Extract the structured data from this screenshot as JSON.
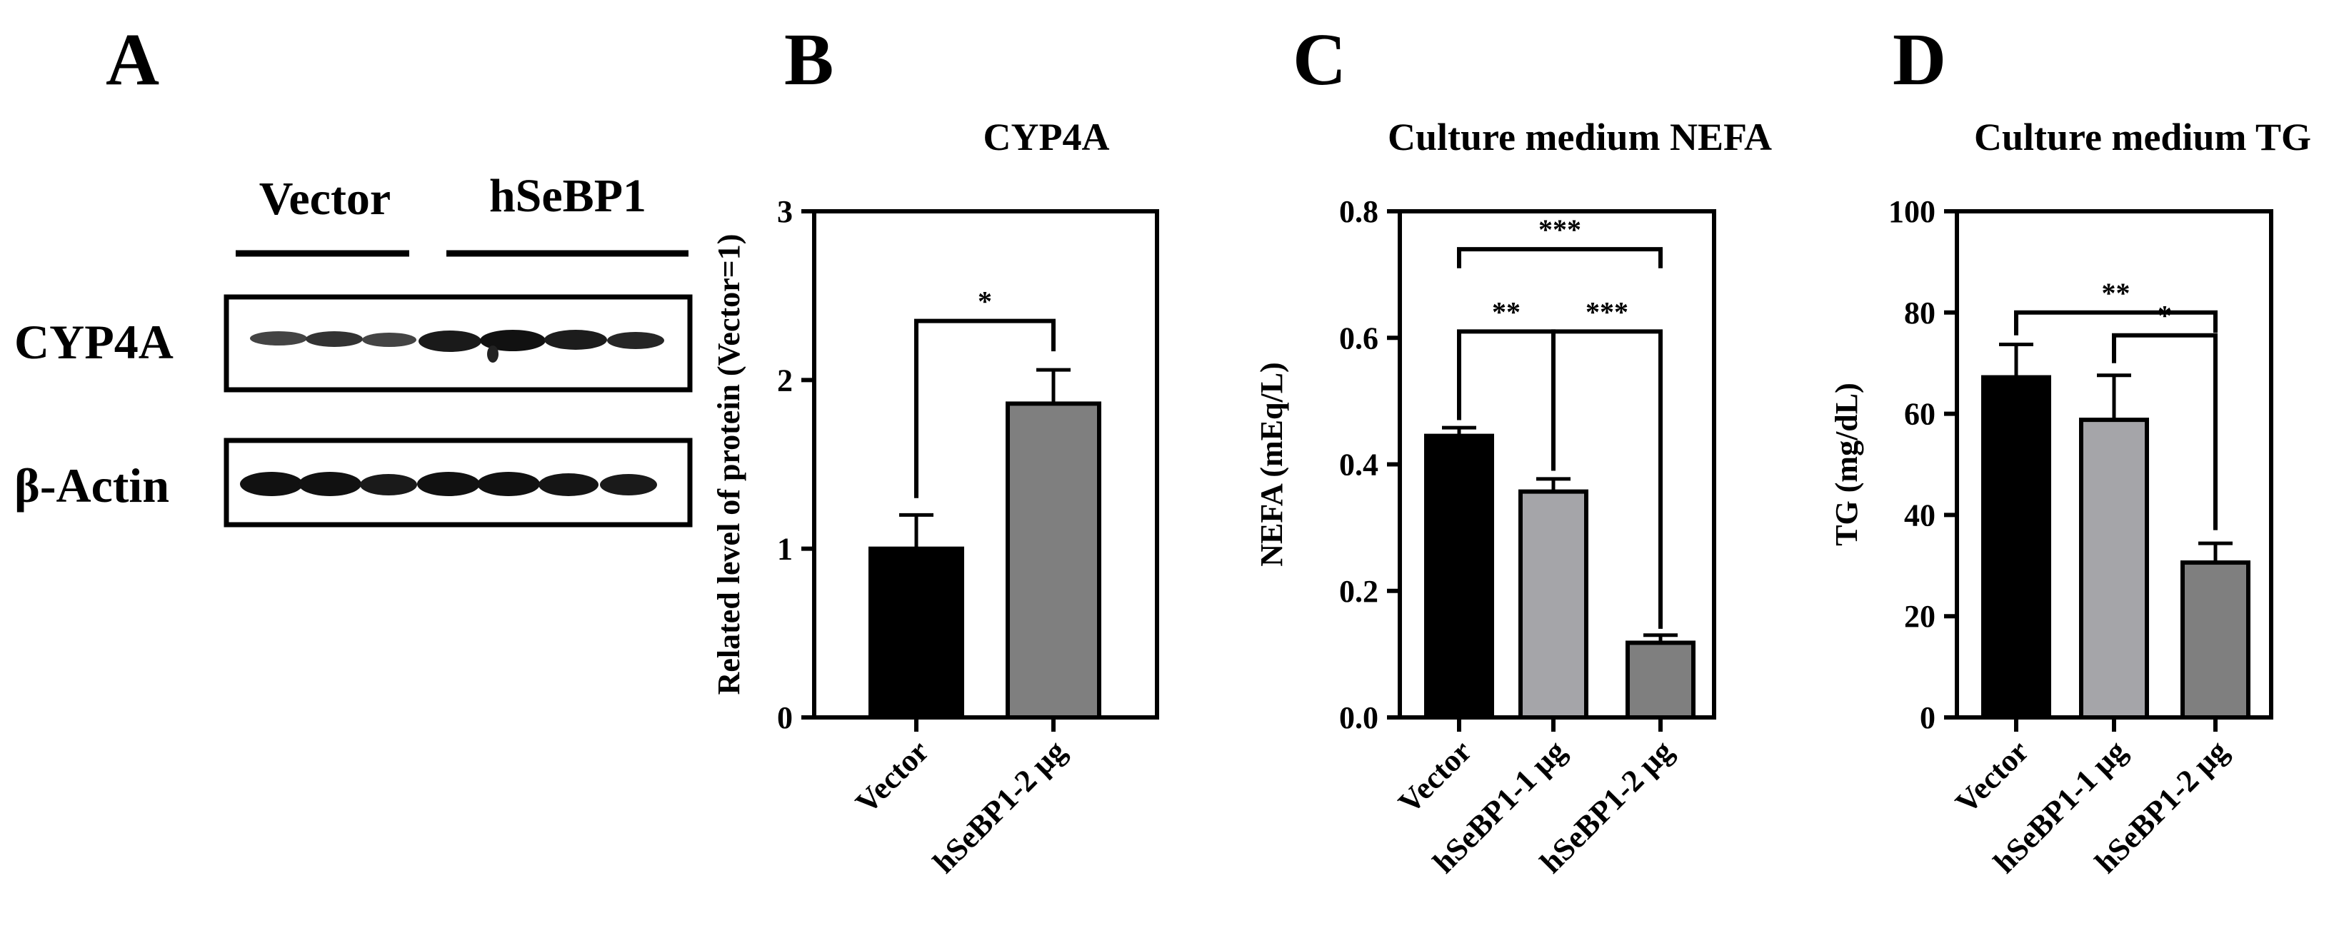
{
  "colors": {
    "ink": "#000000",
    "bar_vector": "#000000",
    "bar_1ug": "#a5a5a9",
    "bar_2ug": "#7f7f7f",
    "background": "#ffffff"
  },
  "panel_a": {
    "letter": "A",
    "group_vector": "Vector",
    "group_hsebp1": "hSeBP1",
    "row_cyp4a": "CYP4A",
    "row_actin": "β-Actin"
  },
  "chart_data": [
    {
      "type": "bar",
      "panel": "B",
      "title": "CYP4A",
      "xlabel": "",
      "ylabel": "Related level of protein (Vector=1)",
      "ylim": [
        0,
        3
      ],
      "yticks": [
        0,
        1,
        2,
        3
      ],
      "ytick_labels": [
        "0",
        "1",
        "2",
        "3"
      ],
      "grid": false,
      "categories": [
        "Vector",
        "hSeBP1-2 μg"
      ],
      "values": [
        1.0,
        1.86
      ],
      "errors": [
        0.2,
        0.2
      ],
      "colors": [
        "#000000",
        "#7f7f7f"
      ],
      "significance": [
        {
          "from": 0,
          "to": 1,
          "label": "*",
          "y": 2.35,
          "drop_left": 1.3,
          "drop_right": 2.17
        }
      ]
    },
    {
      "type": "bar",
      "panel": "C",
      "title": "Culture medium  NEFA",
      "xlabel": "",
      "ylabel": "NEFA (mEq/L)",
      "ylim": [
        0,
        0.8
      ],
      "yticks": [
        0,
        0.2,
        0.4,
        0.6,
        0.8
      ],
      "ytick_labels": [
        "0.0",
        "0.2",
        "0.4",
        "0.6",
        "0.8"
      ],
      "grid": false,
      "categories": [
        "Vector",
        "hSeBP1-1 μg",
        "hSeBP1-2 μg"
      ],
      "values": [
        0.445,
        0.357,
        0.118
      ],
      "errors": [
        0.013,
        0.02,
        0.012
      ],
      "colors": [
        "#000000",
        "#a5a5a9",
        "#7f7f7f"
      ],
      "significance": [
        {
          "from": 0,
          "to": 2,
          "label": "***",
          "y": 0.74,
          "drop_left": 0.71,
          "drop_right": 0.71
        },
        {
          "from": 0,
          "to": 1,
          "label": "**",
          "y": 0.61,
          "drop_left": 0.47,
          "drop_right": 0.39
        },
        {
          "from": 1,
          "to": 2,
          "label": "***",
          "y": 0.61,
          "drop_left": 0.39,
          "drop_right": 0.14
        }
      ]
    },
    {
      "type": "bar",
      "panel": "D",
      "title": "Culture medium TG",
      "xlabel": "",
      "ylabel": "TG (mg/dL)",
      "ylim": [
        0,
        100
      ],
      "yticks": [
        0,
        20,
        40,
        60,
        80,
        100
      ],
      "ytick_labels": [
        "0",
        "20",
        "40",
        "60",
        "80",
        "100"
      ],
      "grid": false,
      "categories": [
        "Vector",
        "hSeBP1-1 μg",
        "hSeBP1-2 μg"
      ],
      "values": [
        67.2,
        58.8,
        30.6
      ],
      "errors": [
        6.5,
        8.8,
        3.8
      ],
      "colors": [
        "#000000",
        "#a5a5a9",
        "#7f7f7f"
      ],
      "significance": [
        {
          "from": 0,
          "to": 2,
          "label": "**",
          "y": 80,
          "drop_left": 75.5,
          "drop_right": 76
        },
        {
          "from": 1,
          "to": 2,
          "label": "*",
          "y": 75.5,
          "drop_left": 70,
          "drop_right": 37
        }
      ]
    }
  ]
}
